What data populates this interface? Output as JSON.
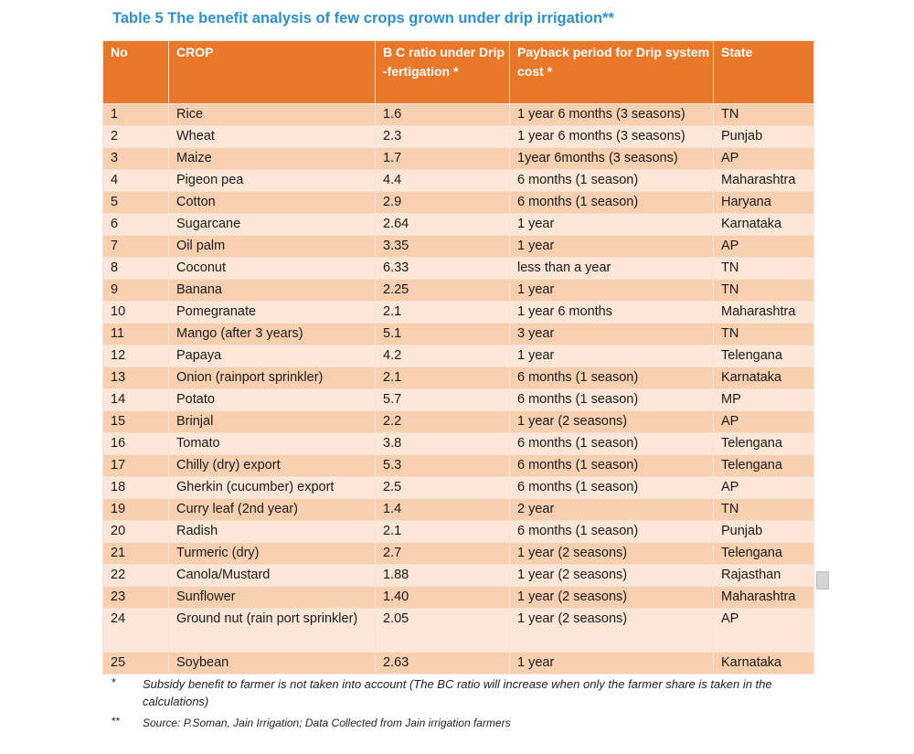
{
  "title": "Table 5 The benefit analysis of few crops grown under drip irrigation**",
  "headers": {
    "no": "No",
    "crop": "CROP",
    "bc": "B C ratio under Drip -fertigation *",
    "payback": "Payback period for Drip system cost *",
    "state": "State"
  },
  "rows": [
    {
      "no": "1",
      "crop": "Rice",
      "bc": "1.6",
      "payback": "1 year 6 months (3 seasons)",
      "state": "TN"
    },
    {
      "no": "2",
      "crop": "Wheat",
      "bc": "2.3",
      "payback": "1 year 6 months (3 seasons)",
      "state": "Punjab"
    },
    {
      "no": "3",
      "crop": "Maize",
      "bc": "1.7",
      "payback": "1year 6months (3 seasons)",
      "state": "AP"
    },
    {
      "no": "4",
      "crop": "Pigeon pea",
      "bc": "4.4",
      "payback": "6 months (1 season)",
      "state": "Maharashtra"
    },
    {
      "no": "5",
      "crop": "Cotton",
      "bc": "2.9",
      "payback": "6 months (1 season)",
      "state": "Haryana"
    },
    {
      "no": "6",
      "crop": "Sugarcane",
      "bc": "2.64",
      "payback": "1 year",
      "state": "Karnataka"
    },
    {
      "no": "7",
      "crop": "Oil palm",
      "bc": "3.35",
      "payback": "1 year",
      "state": "AP"
    },
    {
      "no": "8",
      "crop": "Coconut",
      "bc": "6.33",
      "payback": "less than a year",
      "state": "TN"
    },
    {
      "no": "9",
      "crop": "Banana",
      "bc": "2.25",
      "payback": "1 year",
      "state": "TN"
    },
    {
      "no": "10",
      "crop": "Pomegranate",
      "bc": "2.1",
      "payback": "1 year 6 months",
      "state": "Maharashtra"
    },
    {
      "no": "11",
      "crop": "Mango (after 3 years)",
      "bc": "5.1",
      "payback": "3 year",
      "state": "TN"
    },
    {
      "no": "12",
      "crop": "Papaya",
      "bc": "4.2",
      "payback": "1 year",
      "state": "Telengana"
    },
    {
      "no": "13",
      "crop": "Onion (rainport sprinkler)",
      "bc": "2.1",
      "payback": "6 months (1 season)",
      "state": "Karnataka"
    },
    {
      "no": "14",
      "crop": "Potato",
      "bc": "5.7",
      "payback": "6 months (1 season)",
      "state": "MP"
    },
    {
      "no": "15",
      "crop": "Brinjal",
      "bc": "2.2",
      "payback": "1 year (2 seasons)",
      "state": "AP"
    },
    {
      "no": "16",
      "crop": "Tomato",
      "bc": "3.8",
      "payback": "6 months (1 season)",
      "state": "Telengana"
    },
    {
      "no": "17",
      "crop": "Chilly (dry) export",
      "bc": "5.3",
      "payback": "6 months (1 season)",
      "state": "Telengana"
    },
    {
      "no": "18",
      "crop": "Gherkin (cucumber) export",
      "bc": "2.5",
      "payback": "6 months (1 season)",
      "state": "AP"
    },
    {
      "no": "19",
      "crop": "Curry leaf (2nd year)",
      "bc": "1.4",
      "payback": "2 year",
      "state": "TN"
    },
    {
      "no": "20",
      "crop": "Radish",
      "bc": "2.1",
      "payback": "6 months (1 season)",
      "state": "Punjab"
    },
    {
      "no": "21",
      "crop": "Turmeric (dry)",
      "bc": "2.7",
      "payback": "1 year (2 seasons)",
      "state": "Telengana"
    },
    {
      "no": "22",
      "crop": "Canola/Mustard",
      "bc": "1.88",
      "payback": "1 year (2 seasons)",
      "state": "Rajasthan"
    },
    {
      "no": "23",
      "crop": "Sunflower",
      "bc": "1.40",
      "payback": "1 year (2 seasons)",
      "state": "Maharashtra"
    },
    {
      "no": "24",
      "crop": "Ground nut (rain port sprinkler)",
      "bc": "2.05",
      "payback": "1 year (2 seasons)",
      "state": "AP"
    },
    {
      "no": "25",
      "crop": "Soybean",
      "bc": "2.63",
      "payback": "1 year",
      "state": "Karnataka"
    }
  ],
  "footnotes": [
    {
      "mark": "*",
      "text": "Subsidy benefit to farmer is not taken into account (The BC ratio will increase when only the farmer share is taken in the calculations)"
    },
    {
      "mark": "**",
      "text": "Source: P.Soman, Jain Irrigation; Data Collected from Jain irrigation farmers"
    }
  ]
}
